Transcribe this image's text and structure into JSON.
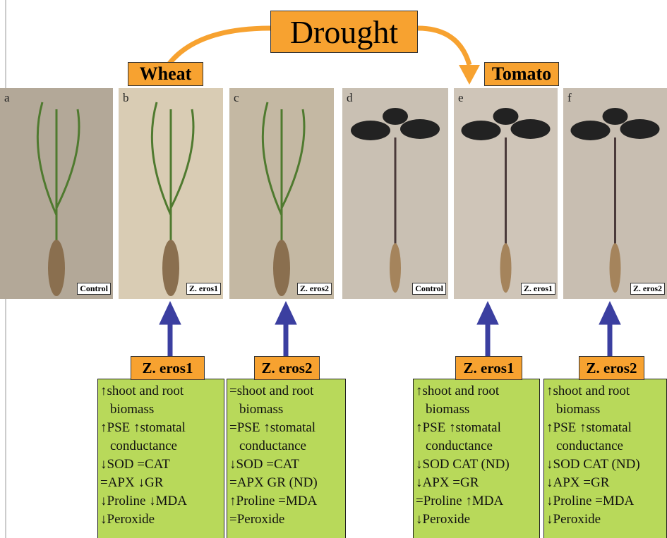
{
  "title": "Drought",
  "groups": [
    {
      "label": "Wheat"
    },
    {
      "label": "Tomato"
    }
  ],
  "panels": [
    {
      "letter": "a",
      "tag": "Control"
    },
    {
      "letter": "b",
      "tag": "Z. eros1"
    },
    {
      "letter": "c",
      "tag": "Z. eros2"
    },
    {
      "letter": "d",
      "tag": "Control"
    },
    {
      "letter": "e",
      "tag": "Z. eros1"
    },
    {
      "letter": "f",
      "tag": "Z. eros2"
    }
  ],
  "boxes": [
    {
      "header": "Z. eros1",
      "lines": [
        "↑shoot and root",
        "biomass",
        "↑PSE ↑stomatal",
        "conductance",
        "↓SOD =CAT",
        "=APX ↓GR",
        "↓Proline ↓MDA",
        "↓Peroxide"
      ]
    },
    {
      "header": "Z. eros2",
      "lines": [
        "=shoot and root",
        "biomass",
        "=PSE ↑stomatal",
        "conductance",
        "↓SOD =CAT",
        "=APX GR (ND)",
        "↑Proline =MDA",
        "=Peroxide"
      ]
    },
    {
      "header": "Z. eros1",
      "lines": [
        "↑shoot and root",
        "biomass",
        "↑PSE ↑stomatal",
        "conductance",
        "↓SOD CAT (ND)",
        "↓APX =GR",
        "=Proline ↑MDA",
        "↓Peroxide"
      ]
    },
    {
      "header": "Z. eros2",
      "lines": [
        "↑shoot and root",
        "biomass",
        "↑PSE ↑stomatal",
        "conductance",
        "↓SOD CAT (ND)",
        "↓APX =GR",
        "↓Proline =MDA",
        "↓Peroxide"
      ]
    }
  ]
}
